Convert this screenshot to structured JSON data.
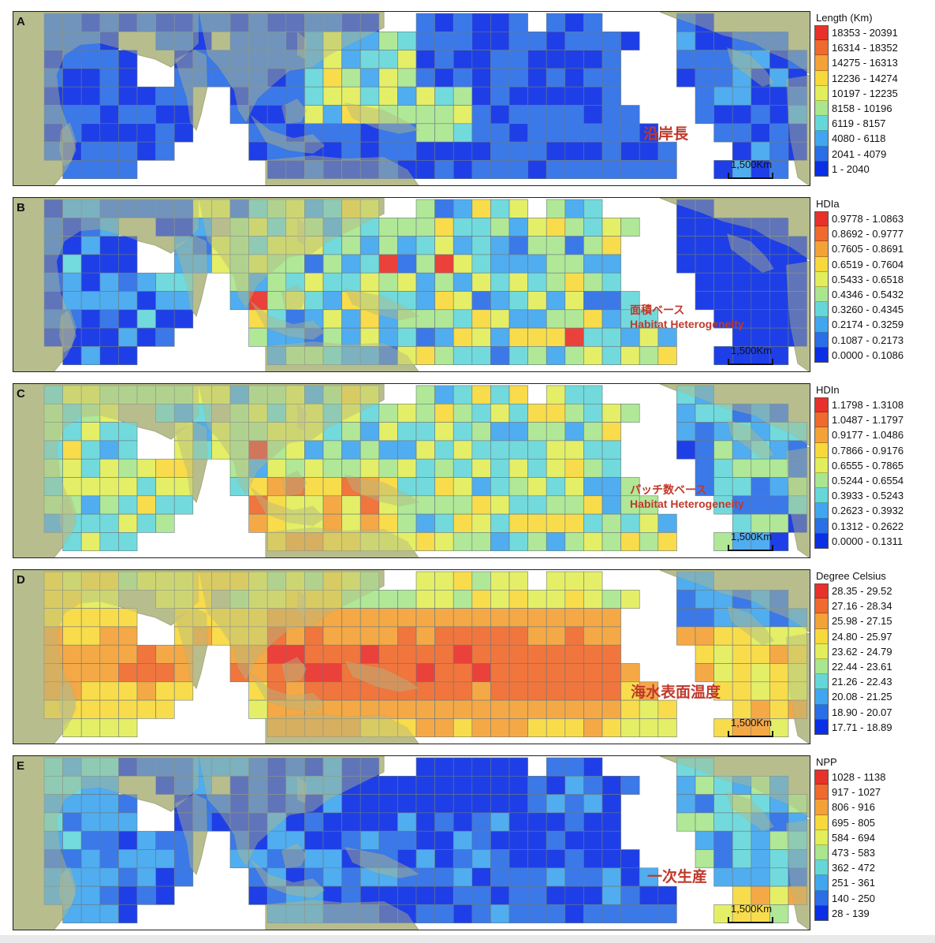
{
  "panels": [
    {
      "letter": "A",
      "annotation": [
        "沿岸長"
      ],
      "annotation_size": "large",
      "legend_title": "Length (Km)",
      "legend_items": [
        "18353 - 20391",
        "16314 - 18352",
        "14275 - 16313",
        "12236 - 14274",
        "10197 - 12235",
        "8158 - 10196",
        "6119 - 8157",
        "4080 - 6118",
        "2041 - 4079",
        "1 - 2040"
      ],
      "scale_label": "1,500Km",
      "variable": "length"
    },
    {
      "letter": "B",
      "annotation": [
        "面積ベース",
        "Habitat Heterogeneity"
      ],
      "annotation_size": "small",
      "legend_title": "HDIa",
      "legend_items": [
        "0.9778 - 1.0863",
        "0.8692 - 0.9777",
        "0.7605 - 0.8691",
        "0.6519 - 0.7604",
        "0.5433 - 0.6518",
        "0.4346 - 0.5432",
        "0.3260 - 0.4345",
        "0.2174 - 0.3259",
        "0.1087 - 0.2173",
        "0.0000 - 0.1086"
      ],
      "scale_label": "1,500Km",
      "variable": "hdia"
    },
    {
      "letter": "C",
      "annotation": [
        "パッチ数ベース",
        "Habitat Heterogeneity"
      ],
      "annotation_size": "small",
      "legend_title": "HDIn",
      "legend_items": [
        "1.1798 - 1.3108",
        "1.0487 - 1.1797",
        "0.9177 - 1.0486",
        "0.7866 - 0.9176",
        "0.6555 - 0.7865",
        "0.5244 - 0.6554",
        "0.3933 - 0.5243",
        "0.2623 - 0.3932",
        "0.1312 - 0.2622",
        "0.0000 - 0.1311"
      ],
      "scale_label": "1,500Km",
      "variable": "hdin"
    },
    {
      "letter": "D",
      "annotation": [
        "海水表面温度"
      ],
      "annotation_size": "large",
      "legend_title": "Degree Celsius",
      "legend_items": [
        "28.35 - 29.52",
        "27.16 - 28.34",
        "25.98 - 27.15",
        "24.80 - 25.97",
        "23.62 - 24.79",
        "22.44 - 23.61",
        "21.26 - 22.43",
        "20.08 - 21.25",
        "18.90 - 20.07",
        "17.71 - 18.89"
      ],
      "scale_label": "1,500Km",
      "variable": "sst"
    },
    {
      "letter": "E",
      "annotation": [
        "一次生産"
      ],
      "annotation_size": "large",
      "legend_title": "NPP",
      "legend_items": [
        "1028 - 1138",
        "917 - 1027",
        "806 - 916",
        "695 - 805",
        "584 - 694",
        "473 - 583",
        "362 - 472",
        "251 - 361",
        "140 - 250",
        "28 - 139"
      ],
      "scale_label": "1,500Km",
      "variable": "npp"
    }
  ],
  "colors": {
    "ramp": [
      "#e8312a",
      "#ef6a2c",
      "#f3a236",
      "#f7d93c",
      "#e2ee5a",
      "#a9e68e",
      "#66d7d9",
      "#41a6ef",
      "#2a6ee7",
      "#0b2fe5"
    ],
    "land": "#b9bd8e",
    "land_shadow": "#9ea37a",
    "annotation": "#c0392b"
  }
}
